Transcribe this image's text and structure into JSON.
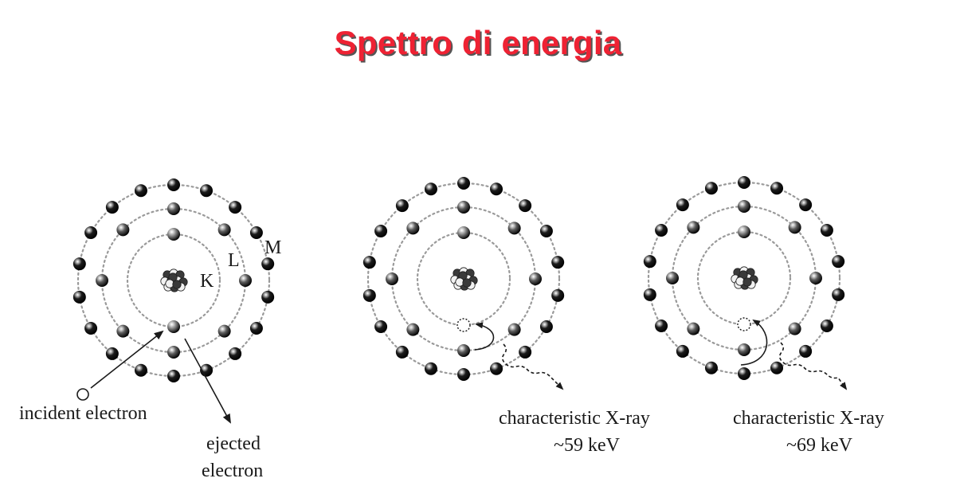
{
  "title": "Spettro di energia",
  "colors": {
    "title": "#ee2233",
    "title_shadow": "#555555",
    "orbit": "#9a9a9a",
    "outer_electron": "#1c1c1c",
    "middle_electron": "#5e5e5e",
    "inner_electron": "#8a8a8a",
    "arrow": "#1a1a1a"
  },
  "panels": [
    {
      "shell_labels": {
        "k": "K",
        "l": "L",
        "m": "M"
      },
      "incident_label": "incident electron",
      "ejected_label_line1": "ejected",
      "ejected_label_line2": "electron"
    },
    {
      "xray_label": "characteristic X-ray",
      "energy_label": "~59 keV"
    },
    {
      "xray_label": "characteristic X-ray",
      "energy_label": "~69 keV"
    }
  ]
}
